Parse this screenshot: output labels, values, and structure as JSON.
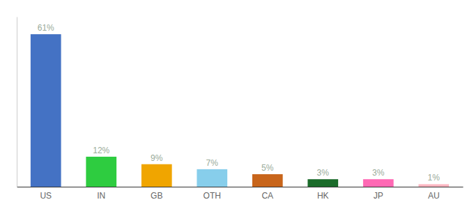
{
  "chart_data": {
    "type": "bar",
    "categories": [
      "US",
      "IN",
      "GB",
      "OTH",
      "CA",
      "HK",
      "JP",
      "AU"
    ],
    "values": [
      61,
      12,
      9,
      7,
      5,
      3,
      3,
      1
    ],
    "value_labels": [
      "61%",
      "12%",
      "9%",
      "7%",
      "5%",
      "3%",
      "3%",
      "1%"
    ],
    "colors": [
      "#4472c4",
      "#2ecc40",
      "#f0a500",
      "#87ceeb",
      "#c8651b",
      "#1a6b2a",
      "#ff69b4",
      "#ffb6c1"
    ],
    "ylim": [
      0,
      68
    ],
    "data_labels": true,
    "tick_labels": "x",
    "grid": false
  }
}
